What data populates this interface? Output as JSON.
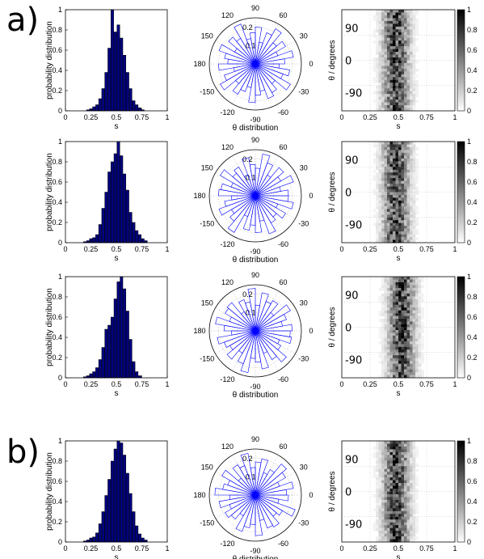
{
  "panel_labels": [
    "a)",
    "b)"
  ],
  "chart_data": [
    {
      "type": "bar",
      "row": 0,
      "x": [
        0.22,
        0.25,
        0.28,
        0.31,
        0.34,
        0.37,
        0.4,
        0.43,
        0.46,
        0.49,
        0.52,
        0.55,
        0.58,
        0.61,
        0.64,
        0.67,
        0.7,
        0.73,
        0.76
      ],
      "values": [
        0.01,
        0.02,
        0.04,
        0.06,
        0.12,
        0.22,
        0.38,
        0.62,
        1.0,
        0.78,
        0.85,
        0.72,
        0.55,
        0.38,
        0.22,
        0.1,
        0.06,
        0.03,
        0.01
      ],
      "xlim": [
        0,
        1
      ],
      "ylim": [
        0,
        1
      ],
      "xticks": [
        "0",
        "0.25",
        "0.5",
        "0.75",
        "1"
      ],
      "yticks": [
        "0",
        "0.2",
        "0.4",
        "0.6",
        "0.8",
        "1"
      ],
      "xlabel": "s",
      "ylabel": "probability distribution",
      "color": "#00007f"
    },
    {
      "type": "polar-histogram",
      "row": 0,
      "radial_ticks": [
        "0.1",
        "0.2"
      ],
      "angle_labels": [
        "90",
        "60",
        "30",
        "0",
        "-30",
        "-60",
        "-90",
        "-120",
        "-150",
        "180",
        "150",
        "120"
      ],
      "xlabel": "θ distribution",
      "values": [
        0.16,
        0.21,
        0.13,
        0.19,
        0.15,
        0.22,
        0.18,
        0.12,
        0.2,
        0.17,
        0.14,
        0.23,
        0.16,
        0.19,
        0.13,
        0.21,
        0.17,
        0.15,
        0.2,
        0.12,
        0.18,
        0.22,
        0.14,
        0.19,
        0.16,
        0.13,
        0.21,
        0.17,
        0.15,
        0.2,
        0.18,
        0.14,
        0.22,
        0.16,
        0.19,
        0.13
      ],
      "color": "#0000ff"
    },
    {
      "type": "heatmap",
      "row": 0,
      "xticks": [
        "0",
        "0.25",
        "0.5",
        "0.75",
        "1"
      ],
      "yticks": [
        "90",
        "0",
        "-90"
      ],
      "xlabel": "s",
      "ylabel": "θ / degrees",
      "colorbar_ticks": [
        "0",
        "0.2",
        "0.4",
        "0.6",
        "0.8",
        "1"
      ]
    },
    {
      "type": "bar",
      "row": 1,
      "x": [
        0.19,
        0.22,
        0.25,
        0.28,
        0.31,
        0.34,
        0.37,
        0.4,
        0.43,
        0.46,
        0.49,
        0.52,
        0.55,
        0.58,
        0.61,
        0.64,
        0.67,
        0.7,
        0.73,
        0.76,
        0.79
      ],
      "values": [
        0.01,
        0.02,
        0.04,
        0.05,
        0.08,
        0.18,
        0.34,
        0.5,
        0.7,
        0.8,
        0.88,
        1.0,
        0.86,
        0.68,
        0.52,
        0.3,
        0.2,
        0.12,
        0.08,
        0.04,
        0.02
      ],
      "xlim": [
        0,
        1
      ],
      "ylim": [
        0,
        1
      ],
      "xticks": [
        "0",
        "0.25",
        "0.5",
        "0.75",
        "1"
      ],
      "yticks": [
        "0",
        "0.2",
        "0.4",
        "0.6",
        "0.8",
        "1"
      ],
      "xlabel": "s",
      "ylabel": "probability distribution",
      "color": "#00007f"
    },
    {
      "type": "polar-histogram",
      "row": 1,
      "radial_ticks": [
        "0.1",
        "0.2"
      ],
      "angle_labels": [
        "90",
        "60",
        "30",
        "0",
        "-30",
        "-60",
        "-90",
        "-120",
        "-150",
        "180",
        "150",
        "120"
      ],
      "xlabel": "θ distribution",
      "values": [
        0.18,
        0.14,
        0.22,
        0.16,
        0.2,
        0.13,
        0.19,
        0.23,
        0.15,
        0.17,
        0.21,
        0.12,
        0.18,
        0.16,
        0.22,
        0.14,
        0.19,
        0.2,
        0.13,
        0.17,
        0.21,
        0.15,
        0.18,
        0.23,
        0.12,
        0.19,
        0.16,
        0.2,
        0.14,
        0.22,
        0.17,
        0.15,
        0.19,
        0.13,
        0.21,
        0.18
      ],
      "color": "#0000ff"
    },
    {
      "type": "heatmap",
      "row": 1,
      "xticks": [
        "0",
        "0.25",
        "0.5",
        "0.75",
        "1"
      ],
      "yticks": [
        "90",
        "0",
        "-90"
      ],
      "xlabel": "s",
      "ylabel": "θ / degrees",
      "colorbar_ticks": [
        "0",
        "0.2",
        "0.4",
        "0.6",
        "0.8",
        "1"
      ]
    },
    {
      "type": "bar",
      "row": 2,
      "x": [
        0.19,
        0.22,
        0.25,
        0.28,
        0.31,
        0.34,
        0.37,
        0.4,
        0.43,
        0.46,
        0.49,
        0.52,
        0.55,
        0.58,
        0.61,
        0.64,
        0.67,
        0.7,
        0.73
      ],
      "values": [
        0.01,
        0.02,
        0.04,
        0.06,
        0.1,
        0.18,
        0.3,
        0.48,
        0.52,
        0.6,
        0.78,
        0.95,
        1.0,
        0.88,
        0.66,
        0.38,
        0.16,
        0.06,
        0.02
      ],
      "xlim": [
        0,
        1
      ],
      "ylim": [
        0,
        1
      ],
      "xticks": [
        "0",
        "0.25",
        "0.5",
        "0.75",
        "1"
      ],
      "yticks": [
        "0",
        "0.2",
        "0.4",
        "0.6",
        "0.8",
        "1"
      ],
      "xlabel": "s",
      "ylabel": "probability distribution",
      "color": "#00007f"
    },
    {
      "type": "polar-histogram",
      "row": 2,
      "radial_ticks": [
        "0.1",
        "0.2"
      ],
      "angle_labels": [
        "90",
        "60",
        "30",
        "0",
        "-30",
        "-60",
        "-90",
        "-120",
        "-150",
        "180",
        "150",
        "120"
      ],
      "xlabel": "θ distribution",
      "values": [
        0.2,
        0.15,
        0.18,
        0.22,
        0.13,
        0.19,
        0.17,
        0.21,
        0.14,
        0.23,
        0.16,
        0.18,
        0.12,
        0.2,
        0.19,
        0.15,
        0.22,
        0.17,
        0.13,
        0.21,
        0.18,
        0.16,
        0.2,
        0.14,
        0.19,
        0.23,
        0.15,
        0.17,
        0.21,
        0.13,
        0.18,
        0.22,
        0.16,
        0.14,
        0.2,
        0.19
      ],
      "color": "#0000ff"
    },
    {
      "type": "heatmap",
      "row": 2,
      "xticks": [
        "0",
        "0.25",
        "0.5",
        "0.75",
        "1"
      ],
      "yticks": [
        "90",
        "0",
        "-90"
      ],
      "xlabel": "s",
      "ylabel": "θ / degrees",
      "colorbar_ticks": [
        "0",
        "0.2",
        "0.4",
        "0.6",
        "0.8",
        "1"
      ]
    },
    {
      "type": "bar",
      "row": 3,
      "x": [
        0.19,
        0.22,
        0.25,
        0.28,
        0.31,
        0.34,
        0.37,
        0.4,
        0.43,
        0.46,
        0.49,
        0.52,
        0.55,
        0.58,
        0.61,
        0.64,
        0.67,
        0.7,
        0.73,
        0.76,
        0.79
      ],
      "values": [
        0.01,
        0.02,
        0.04,
        0.05,
        0.09,
        0.18,
        0.3,
        0.46,
        0.62,
        0.8,
        0.92,
        1.0,
        0.98,
        0.86,
        0.68,
        0.48,
        0.3,
        0.16,
        0.08,
        0.04,
        0.02
      ],
      "xlim": [
        0,
        1
      ],
      "ylim": [
        0,
        1
      ],
      "xticks": [
        "0",
        "0.25",
        "0.5",
        "0.75",
        "1"
      ],
      "yticks": [
        "0",
        "0.2",
        "0.4",
        "0.6",
        "0.8",
        "1"
      ],
      "xlabel": "s",
      "ylabel": "probability distribution",
      "color": "#00007f"
    },
    {
      "type": "polar-histogram",
      "row": 3,
      "radial_ticks": [
        "0.1",
        "0.2"
      ],
      "angle_labels": [
        "90",
        "60",
        "30",
        "0",
        "-30",
        "-60",
        "-90",
        "-120",
        "-150",
        "180",
        "150",
        "120"
      ],
      "xlabel": "θ distribution",
      "values": [
        0.17,
        0.21,
        0.14,
        0.19,
        0.22,
        0.16,
        0.13,
        0.2,
        0.18,
        0.15,
        0.23,
        0.17,
        0.19,
        0.12,
        0.21,
        0.16,
        0.18,
        0.22,
        0.14,
        0.2,
        0.15,
        0.19,
        0.17,
        0.13,
        0.21,
        0.18,
        0.16,
        0.22,
        0.14,
        0.19,
        0.2,
        0.15,
        0.17,
        0.23,
        0.13,
        0.18
      ],
      "color": "#0000ff"
    },
    {
      "type": "heatmap",
      "row": 3,
      "xticks": [
        "0",
        "0.25",
        "0.5",
        "0.75",
        "1"
      ],
      "yticks": [
        "90",
        "0",
        "-90"
      ],
      "xlabel": "s",
      "ylabel": "θ / degrees",
      "colorbar_ticks": [
        "0",
        "0.2",
        "0.4",
        "0.6",
        "0.8",
        "1"
      ]
    }
  ]
}
